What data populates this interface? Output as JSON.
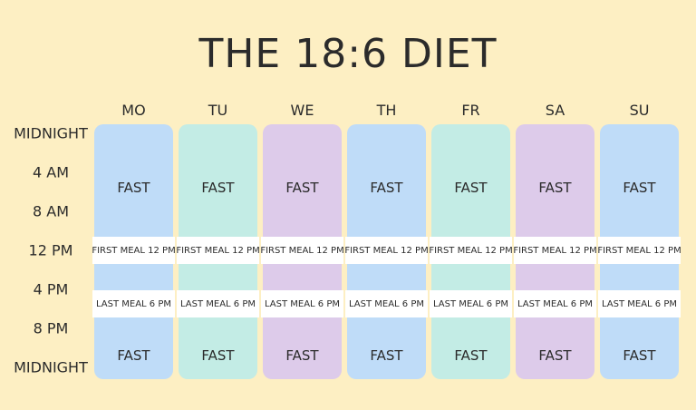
{
  "title": "THE 18:6 DIET",
  "time_labels": [
    "MIDNIGHT",
    "4 AM",
    "8 AM",
    "12 PM",
    "4 PM",
    "8 PM",
    "MIDNIGHT"
  ],
  "days": [
    {
      "name": "MO",
      "color": "#bfdcf8",
      "fast_top": "FAST",
      "first_meal": "FIRST MEAL 12 PM",
      "last_meal": "LAST MEAL 6 PM",
      "fast_bottom": "FAST"
    },
    {
      "name": "TU",
      "color": "#c3ece5",
      "fast_top": "FAST",
      "first_meal": "FIRST MEAL 12 PM",
      "last_meal": "LAST MEAL 6 PM",
      "fast_bottom": "FAST"
    },
    {
      "name": "WE",
      "color": "#ddcbea",
      "fast_top": "FAST",
      "first_meal": "FIRST MEAL 12 PM",
      "last_meal": "LAST MEAL 6 PM",
      "fast_bottom": "FAST"
    },
    {
      "name": "TH",
      "color": "#bfdcf8",
      "fast_top": "FAST",
      "first_meal": "FIRST MEAL 12 PM",
      "last_meal": "LAST MEAL 6 PM",
      "fast_bottom": "FAST"
    },
    {
      "name": "FR",
      "color": "#c3ece5",
      "fast_top": "FAST",
      "first_meal": "FIRST MEAL 12 PM",
      "last_meal": "LAST MEAL 6 PM",
      "fast_bottom": "FAST"
    },
    {
      "name": "SA",
      "color": "#ddcbea",
      "fast_top": "FAST",
      "first_meal": "FIRST MEAL 12 PM",
      "last_meal": "LAST MEAL 6 PM",
      "fast_bottom": "FAST"
    },
    {
      "name": "SU",
      "color": "#bfdcf8",
      "fast_top": "FAST",
      "first_meal": "FIRST MEAL 12 PM",
      "last_meal": "LAST MEAL 6 PM",
      "fast_bottom": "FAST"
    }
  ]
}
